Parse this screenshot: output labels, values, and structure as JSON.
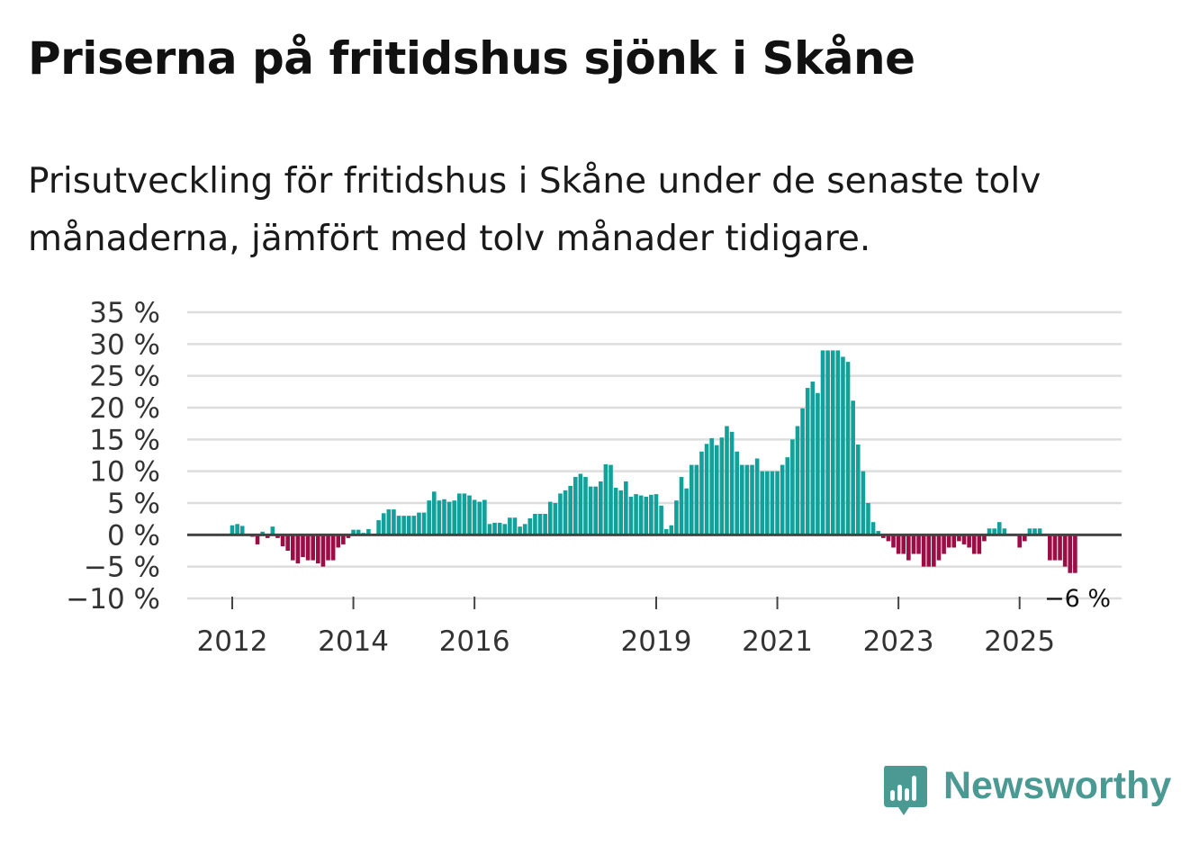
{
  "title": "Priserna på fritidshus sjönk i Skåne",
  "subtitle": "Prisutveckling för fritidshus i Skåne under de senaste tolv månaderna, jämfört med tolv månader tidigare.",
  "logo_text": "Newsworthy",
  "colors": {
    "positive": "#12a19a",
    "negative": "#9b0d45",
    "logo": "#4a9a93",
    "grid": "#dddddd",
    "zero": "#444444"
  },
  "chart_data": {
    "type": "bar",
    "title": "Priserna på fritidshus sjönk i Skåne",
    "xlabel": "",
    "ylabel": "",
    "ylim": [
      -10,
      35
    ],
    "x_start": "2012-01",
    "x_step": "month",
    "yticks": [
      -10,
      -5,
      0,
      5,
      10,
      15,
      20,
      25,
      30,
      35
    ],
    "ytick_labels": [
      "−10 %",
      "−5 %",
      "0 %",
      "5 %",
      "10 %",
      "15 %",
      "20 %",
      "25 %",
      "30 %",
      "35 %"
    ],
    "xtick_labels": [
      {
        "label": "2012",
        "index": 0
      },
      {
        "label": "2014",
        "index": 24
      },
      {
        "label": "2016",
        "index": 48
      },
      {
        "label": "2019",
        "index": 84
      },
      {
        "label": "2021",
        "index": 108
      },
      {
        "label": "2023",
        "index": 132
      },
      {
        "label": "2025",
        "index": 156
      }
    ],
    "end_label": "−6 %",
    "values": [
      1.5,
      1.7,
      1.4,
      0,
      -0.3,
      -1.5,
      0.5,
      -0.5,
      1.3,
      -0.5,
      -1.8,
      -2.5,
      -4,
      -4.5,
      -3.5,
      -4,
      -4,
      -4.5,
      -5,
      -4,
      -4,
      -2,
      -1.5,
      -0.5,
      0.8,
      0.8,
      0.3,
      0.9,
      0,
      2.3,
      3.4,
      4,
      4,
      3,
      3,
      3,
      3,
      3.5,
      3.5,
      5.4,
      6.8,
      5.4,
      5.6,
      5.2,
      5.4,
      6.5,
      6.5,
      6.2,
      5.5,
      5.2,
      5.5,
      1.7,
      1.9,
      1.9,
      1.7,
      2.7,
      2.7,
      1.3,
      1.7,
      2.6,
      3.3,
      3.3,
      3.3,
      5.2,
      5,
      6.5,
      7,
      7.7,
      9.1,
      9.6,
      9.1,
      7.6,
      7.6,
      8.4,
      11.1,
      11,
      7.4,
      7,
      8.4,
      6,
      6.4,
      6.2,
      6,
      6.3,
      6.4,
      4.6,
      0.9,
      1.5,
      5.4,
      9.1,
      7.3,
      11,
      11,
      13.1,
      14.3,
      15.2,
      14.1,
      15.3,
      17.1,
      16.2,
      13.1,
      11,
      11,
      11,
      12,
      10,
      10,
      10,
      10,
      11,
      12.2,
      15,
      17.1,
      19.9,
      23.1,
      24.1,
      22.3,
      29,
      29,
      29,
      29,
      28,
      27.2,
      21.1,
      14.2,
      10,
      5,
      2,
      0.6,
      -0.5,
      -1,
      -2,
      -3,
      -3,
      -4,
      -3,
      -3,
      -5,
      -5,
      -5,
      -4,
      -3,
      -2,
      -2,
      -1,
      -1.5,
      -2,
      -3,
      -3,
      -1,
      1,
      1,
      2,
      1,
      0,
      0,
      -2,
      -1,
      1,
      1,
      1,
      0,
      -4,
      -4,
      -4,
      -5,
      -6,
      -6
    ]
  }
}
